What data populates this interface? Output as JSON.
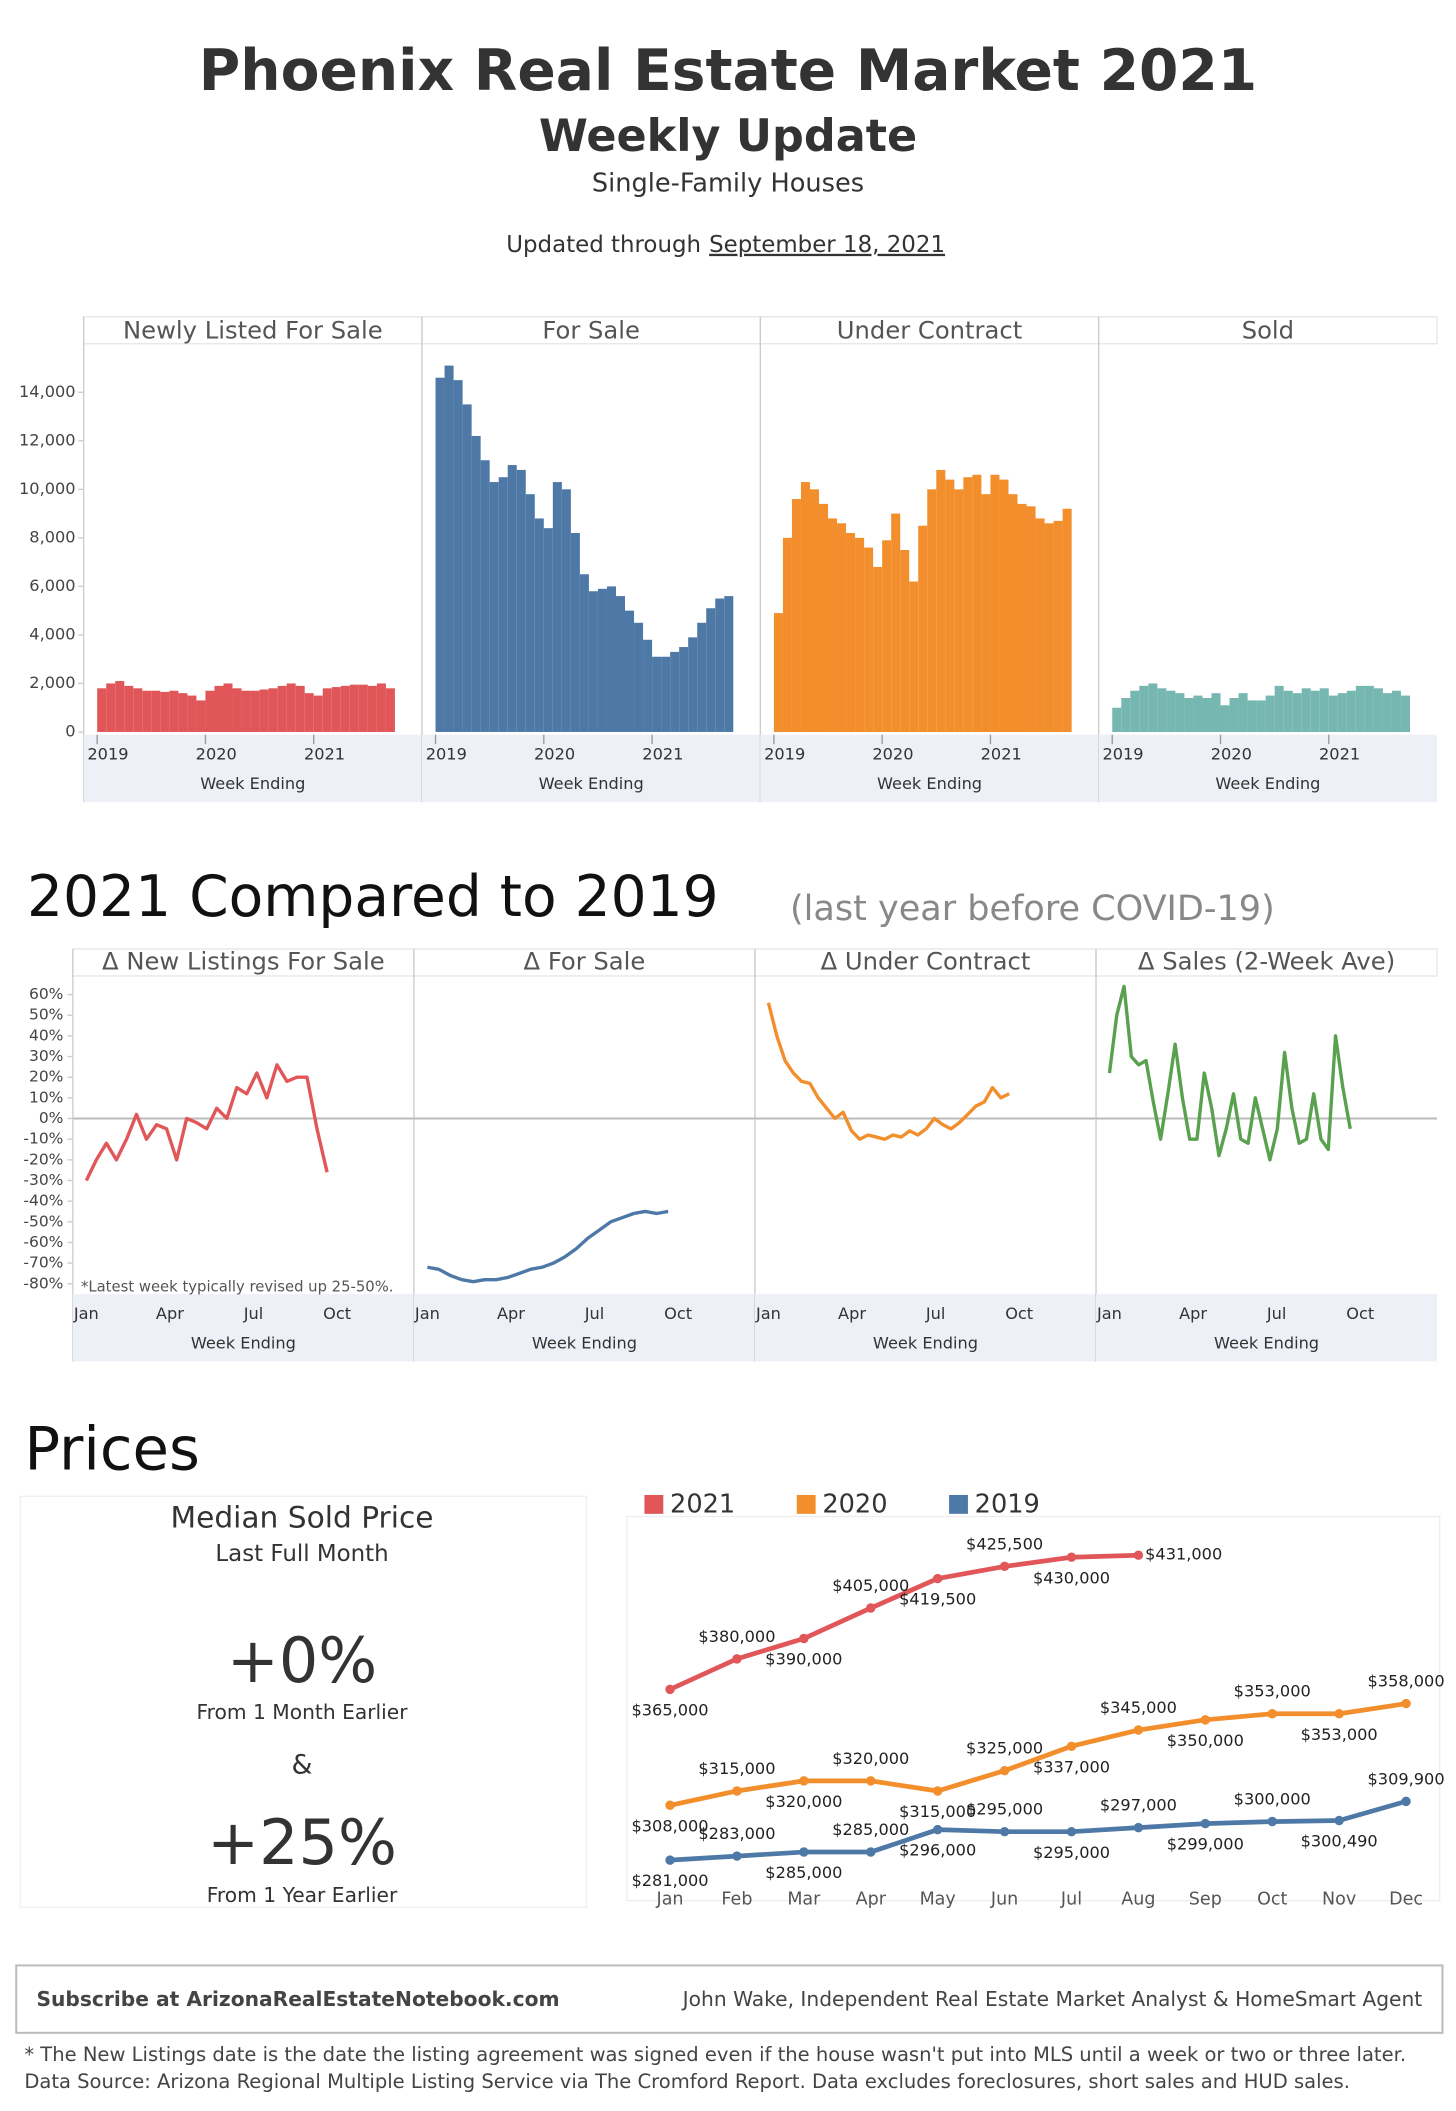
{
  "header": {
    "title": "Phoenix Real Estate Market 2021",
    "subtitle": "Weekly Update",
    "subheading": "Single-Family Houses",
    "updated_prefix": "Updated through",
    "updated_date": "September 18, 2021"
  },
  "sections": {
    "compare_title": "2021 Compared to 2019",
    "compare_note": "(last year before COVID-19)",
    "prices_title": "Prices"
  },
  "chart_data": [
    {
      "type": "bar",
      "title": "Newly Listed For Sale",
      "color": "#e15759",
      "xlabel": "Week Ending",
      "xlim": [
        2018.875,
        2022.0
      ],
      "xticks": [
        2019,
        2020,
        2021
      ],
      "ylim": [
        0,
        16000
      ],
      "yticks": [
        0,
        {
          "value": 2000,
          "label": "2,000"
        },
        {
          "value": 4000,
          "label": "4,000"
        },
        {
          "value": 6000,
          "label": "6,000"
        },
        {
          "value": 8000,
          "label": "8,000"
        },
        {
          "value": 10000,
          "label": "10,000"
        },
        {
          "value": 12000,
          "label": "12,000"
        },
        {
          "value": 14000,
          "label": "14,000"
        }
      ],
      "values": [
        1800,
        2000,
        2100,
        1900,
        1800,
        1700,
        1700,
        1650,
        1700,
        1600,
        1500,
        1300,
        1700,
        1900,
        2000,
        1800,
        1700,
        1700,
        1750,
        1800,
        1900,
        2000,
        1900,
        1600,
        1500,
        1800,
        1850,
        1900,
        1950,
        1950,
        1900,
        2000,
        1800
      ]
    },
    {
      "type": "bar",
      "title": "For Sale",
      "color": "#4e79a7",
      "xlabel": "Week Ending",
      "xlim": [
        2018.875,
        2022.0
      ],
      "xticks": [
        2019,
        2020,
        2021
      ],
      "ylim": [
        0,
        16000
      ],
      "values": [
        14600,
        15100,
        14500,
        13500,
        12200,
        11200,
        10300,
        10500,
        11000,
        10800,
        9800,
        8800,
        8400,
        10300,
        10000,
        8200,
        6500,
        5800,
        5900,
        6000,
        5600,
        5000,
        4500,
        3800,
        3100,
        3100,
        3300,
        3500,
        3900,
        4500,
        5100,
        5500,
        5600
      ]
    },
    {
      "type": "bar",
      "title": "Under Contract",
      "color": "#f28e2b",
      "xlabel": "Week Ending",
      "xlim": [
        2018.875,
        2022.0
      ],
      "xticks": [
        2019,
        2020,
        2021
      ],
      "ylim": [
        0,
        16000
      ],
      "values": [
        4900,
        8000,
        9600,
        10300,
        10000,
        9400,
        8800,
        8600,
        8200,
        8000,
        7600,
        6800,
        7900,
        9000,
        7500,
        6200,
        8500,
        10000,
        10800,
        10400,
        10000,
        10500,
        10600,
        9800,
        10600,
        10400,
        9800,
        9400,
        9300,
        8800,
        8600,
        8700,
        9200
      ]
    },
    {
      "type": "bar",
      "title": "Sold",
      "color": "#76b7b2",
      "xlabel": "Week Ending",
      "xlim": [
        2018.875,
        2022.0
      ],
      "xticks": [
        2019,
        2020,
        2021
      ],
      "ylim": [
        0,
        16000
      ],
      "values": [
        1000,
        1400,
        1700,
        1900,
        2000,
        1800,
        1700,
        1600,
        1400,
        1500,
        1400,
        1600,
        1100,
        1400,
        1600,
        1300,
        1300,
        1500,
        1900,
        1700,
        1600,
        1800,
        1700,
        1800,
        1500,
        1600,
        1700,
        1900,
        1900,
        1800,
        1600,
        1700,
        1500
      ]
    },
    {
      "type": "line",
      "title": "Δ New Listings For Sale",
      "color": "#e15759",
      "xlabel": "Week Ending",
      "xticks": [
        "Jan",
        "Apr",
        "Jul",
        "Oct"
      ],
      "ylim": [
        -85,
        69
      ],
      "yticks": [
        {
          "value": -80,
          "label": "-80%"
        },
        {
          "value": -70,
          "label": "-70%"
        },
        {
          "value": -60,
          "label": "-60%"
        },
        {
          "value": -50,
          "label": "-50%"
        },
        {
          "value": -40,
          "label": "-40%"
        },
        {
          "value": -30,
          "label": "-30%"
        },
        {
          "value": -20,
          "label": "-20%"
        },
        {
          "value": -10,
          "label": "-10%"
        },
        {
          "value": 0,
          "label": "0%"
        },
        {
          "value": 10,
          "label": "10%"
        },
        {
          "value": 20,
          "label": "20%"
        },
        {
          "value": 30,
          "label": "30%"
        },
        {
          "value": 40,
          "label": "40%"
        },
        {
          "value": 50,
          "label": "50%"
        },
        {
          "value": 60,
          "label": "60%"
        }
      ],
      "note": "*Latest week typically revised up 25-50%.",
      "values": [
        -30,
        -20,
        -12,
        -20,
        -10,
        2,
        -10,
        -3,
        -5,
        -20,
        0,
        -2,
        -5,
        5,
        0,
        15,
        12,
        22,
        10,
        26,
        18,
        20,
        20,
        -5,
        -26
      ]
    },
    {
      "type": "line",
      "title": "Δ For Sale",
      "color": "#4e79a7",
      "xlabel": "Week Ending",
      "xticks": [
        "Jan",
        "Apr",
        "Jul",
        "Oct"
      ],
      "ylim": [
        -85,
        69
      ],
      "values": [
        -72,
        -73,
        -76,
        -78,
        -79,
        -78,
        -78,
        -77,
        -75,
        -73,
        -72,
        -70,
        -67,
        -63,
        -58,
        -54,
        -50,
        -48,
        -46,
        -45,
        -46,
        -45
      ]
    },
    {
      "type": "line",
      "title": "Δ Under Contract",
      "color": "#f28e2b",
      "xlabel": "Week Ending",
      "xticks": [
        "Jan",
        "Apr",
        "Jul",
        "Oct"
      ],
      "ylim": [
        -85,
        69
      ],
      "values": [
        56,
        40,
        28,
        22,
        18,
        17,
        10,
        5,
        0,
        3,
        -6,
        -10,
        -8,
        -9,
        -10,
        -8,
        -9,
        -6,
        -8,
        -5,
        0,
        -3,
        -5,
        -2,
        2,
        6,
        8,
        15,
        10,
        12
      ]
    },
    {
      "type": "line",
      "title": "Δ Sales (2-Week Ave)",
      "color": "#59a14f",
      "xlabel": "Week Ending",
      "xticks": [
        "Jan",
        "Apr",
        "Jul",
        "Oct"
      ],
      "ylim": [
        -85,
        69
      ],
      "values": [
        22,
        50,
        64,
        30,
        26,
        28,
        8,
        -10,
        12,
        36,
        10,
        -10,
        -10,
        22,
        5,
        -18,
        -5,
        12,
        -10,
        -12,
        10,
        -5,
        -20,
        -5,
        32,
        5,
        -12,
        -10,
        12,
        -10,
        -15,
        40,
        15,
        -5
      ]
    },
    {
      "type": "line",
      "title": "Median Sold Price",
      "categories": [
        "Jan",
        "Feb",
        "Mar",
        "Apr",
        "May",
        "Jun",
        "Jul",
        "Aug",
        "Sep",
        "Oct",
        "Nov",
        "Dec"
      ],
      "ylim": [
        271000,
        450000
      ],
      "legend": "top-left",
      "series": [
        {
          "name": "2021",
          "color": "#e15759",
          "values": [
            365000,
            380000,
            390000,
            405000,
            419500,
            425500,
            430000,
            431000,
            null,
            null,
            null,
            null
          ],
          "value_labels": [
            "$365,000",
            "$380,000",
            "$390,000",
            "$405,000",
            "$419,500",
            "$425,500",
            "$430,000",
            "$431,000",
            null,
            null,
            null,
            null
          ]
        },
        {
          "name": "2020",
          "color": "#f28e2b",
          "values": [
            308000,
            315000,
            320000,
            320000,
            315000,
            325000,
            337000,
            345000,
            350000,
            353000,
            353000,
            358000
          ],
          "value_labels": [
            "$308,000",
            "$315,000",
            "$320,000",
            "$320,000",
            "$315,000",
            "$325,000",
            "$337,000",
            "$345,000",
            "$350,000",
            "$353,000",
            "$353,000",
            "$358,000"
          ]
        },
        {
          "name": "2019",
          "color": "#4e79a7",
          "values": [
            281000,
            283000,
            285000,
            285000,
            296000,
            295000,
            295000,
            297000,
            299000,
            300000,
            300490,
            309900
          ],
          "value_labels": [
            "$281,000",
            "$283,000",
            "$285,000",
            "$285,000",
            "$296,000",
            "$295,000",
            "$295,000",
            "$297,000",
            "$299,000",
            "$300,000",
            "$300,490",
            "$309,900"
          ]
        }
      ]
    }
  ],
  "prices_summary": {
    "heading": "Median Sold Price",
    "period": "Last Full Month",
    "month_change": "+0%",
    "month_caption": "From 1 Month Earlier",
    "joiner": "&",
    "year_change": "+25%",
    "year_caption": "From 1 Year Earlier"
  },
  "footer": {
    "subscribe": "Subscribe at ArizonaRealEstateNotebook.com",
    "author": "John Wake, Independent Real Estate Market Analyst & HomeSmart Agent",
    "note_1": "* The New Listings date is the date the listing agreement was signed even if the house wasn't put into MLS until a week or two or three later.",
    "note_2": "Data Source: Arizona Regional Multiple Listing Service via The Cromford Report. Data excludes foreclosures, short sales and HUD sales."
  }
}
